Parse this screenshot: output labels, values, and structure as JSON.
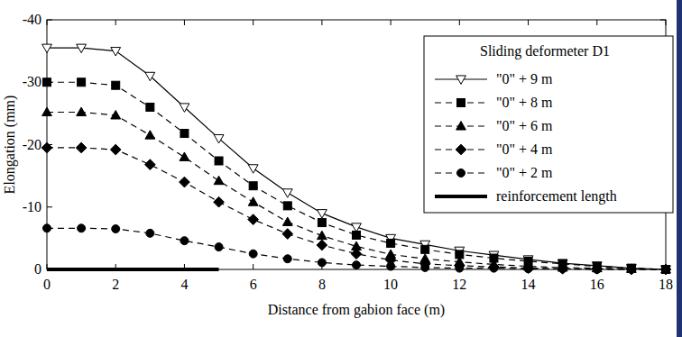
{
  "chart_data": {
    "type": "line",
    "x_label": "Distance from gabion face (m)",
    "y_label": "Elongation (mm)",
    "legend_title": "Sliding deformeter D1",
    "legend": "upper right",
    "grid": false,
    "x": [
      0,
      1,
      2,
      3,
      4,
      5,
      6,
      7,
      8,
      9,
      10,
      11,
      12,
      13,
      14,
      15,
      16,
      17,
      18
    ],
    "xlim": [
      0,
      18
    ],
    "xticks": [
      0,
      2,
      4,
      6,
      8,
      10,
      12,
      14,
      16,
      18
    ],
    "ylim": [
      0,
      -40
    ],
    "yticks": [
      -40,
      -30,
      -20,
      -10,
      0
    ],
    "series": [
      {
        "name": "\"0\" + 9 m",
        "color": "#000000",
        "marker": "triangle-down-open",
        "line_style": "solid",
        "values": [
          -35.5,
          -35.5,
          -35,
          -31,
          -26,
          -21,
          -16.2,
          -12.3,
          -9,
          -6.8,
          -5,
          -4,
          -3,
          -2.3,
          -1.6,
          -1,
          -0.6,
          -0.2,
          0
        ]
      },
      {
        "name": "\"0\" + 8 m",
        "color": "#000000",
        "marker": "square",
        "line_style": "dashed",
        "values": [
          -30,
          -30,
          -29.5,
          -26,
          -21.8,
          -17.4,
          -13.4,
          -10.2,
          -7.5,
          -5.5,
          -4.2,
          -3.2,
          -2.4,
          -1.8,
          -1.3,
          -0.9,
          -0.5,
          -0.2,
          0
        ]
      },
      {
        "name": "\"0\" + 6 m",
        "color": "#000000",
        "marker": "triangle-up",
        "line_style": "dashed",
        "values": [
          -25.2,
          -25.2,
          -24.7,
          -21.5,
          -18,
          -14.2,
          -10.8,
          -7.6,
          -5.4,
          -3.7,
          -2.4,
          -1.7,
          -1.2,
          -0.8,
          -0.5,
          -0.3,
          -0.2,
          -0.1,
          0
        ]
      },
      {
        "name": "\"0\" + 4 m",
        "color": "#000000",
        "marker": "diamond",
        "line_style": "dashed",
        "values": [
          -19.5,
          -19.5,
          -19.2,
          -16.8,
          -14,
          -10.8,
          -8,
          -5.7,
          -3.9,
          -2.5,
          -1.5,
          -0.9,
          -0.6,
          -0.4,
          -0.2,
          -0.1,
          -0.1,
          0,
          0
        ]
      },
      {
        "name": "\"0\" + 2 m",
        "color": "#000000",
        "marker": "circle",
        "line_style": "dashed",
        "values": [
          -6.6,
          -6.6,
          -6.5,
          -5.8,
          -4.6,
          -3.6,
          -2.5,
          -1.7,
          -1.1,
          -0.7,
          -0.5,
          -0.3,
          -0.2,
          -0.2,
          -0.1,
          -0.1,
          0,
          0,
          0
        ]
      },
      {
        "name": "reinforcement length",
        "color": "#000000",
        "marker": "none",
        "line_style": "thick",
        "x": [
          0,
          5
        ],
        "values": [
          0,
          0
        ]
      }
    ]
  }
}
